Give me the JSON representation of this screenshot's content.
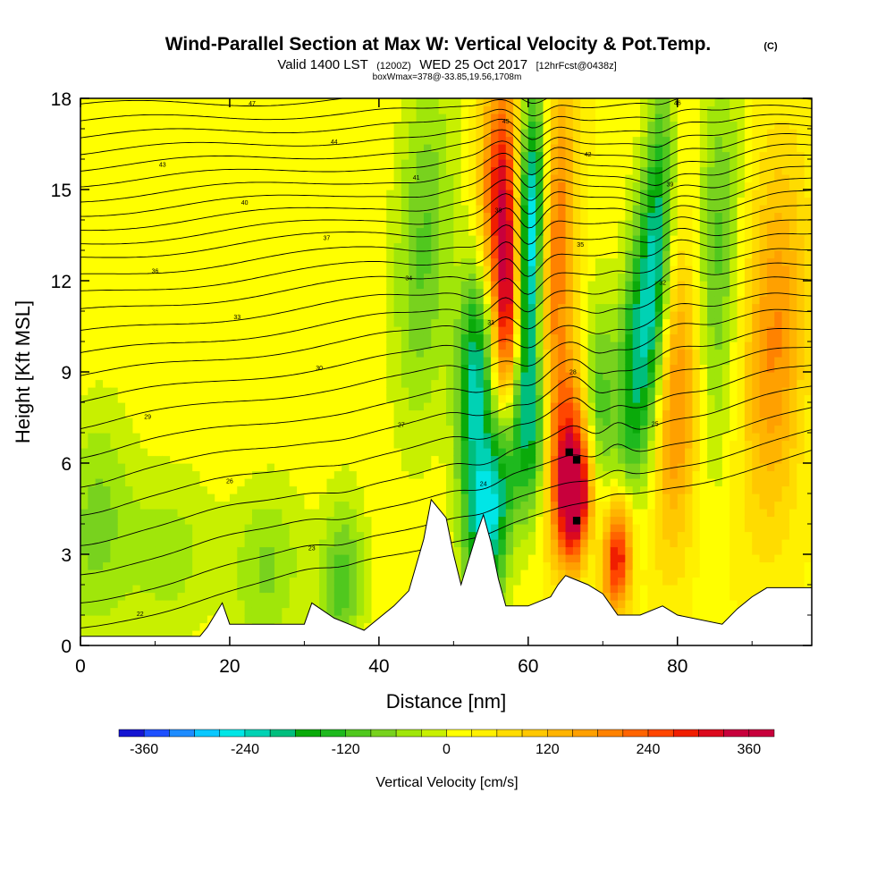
{
  "header": {
    "title": "Wind-Parallel Section at Max W: Vertical Velocity & Pot.Temp.",
    "copyright": "(C)",
    "valid_prefix": "Valid 1400 LST",
    "valid_z": "(1200Z)",
    "valid_date": "WED 25 Oct 2017",
    "valid_fcst": "[12hrFcst@0438z]",
    "boxline": "boxWmax=378@-33.85,19.56,1708m"
  },
  "chart_data": {
    "type": "contour",
    "xlabel": "Distance [nm]",
    "ylabel": "Height [Kft MSL]",
    "xlim": [
      0,
      98
    ],
    "ylim": [
      0,
      18
    ],
    "x_ticks": [
      "0",
      "20",
      "40",
      "60",
      "80"
    ],
    "y_ticks": [
      "0",
      "3",
      "6",
      "9",
      "12",
      "15",
      "18"
    ],
    "colorbar": {
      "label": "Vertical Velocity [cm/s]",
      "tick_labels": [
        "-360",
        "-240",
        "-120",
        "0",
        "120",
        "240",
        "360"
      ],
      "levels": [
        -390,
        -360,
        -330,
        -300,
        -270,
        -240,
        -210,
        -180,
        -150,
        -120,
        -90,
        -60,
        -30,
        0,
        30,
        60,
        90,
        120,
        150,
        180,
        210,
        240,
        270,
        300,
        330,
        360,
        390
      ],
      "colors": [
        "#1414d2",
        "#1e50ff",
        "#1e8cff",
        "#0ac8ff",
        "#00e6e6",
        "#00d2b4",
        "#00be7d",
        "#0aaa0a",
        "#1eb91e",
        "#50c81e",
        "#78d21e",
        "#a0e60a",
        "#c8f000",
        "#ffff00",
        "#fff000",
        "#ffdc00",
        "#ffc800",
        "#ffb400",
        "#ffa000",
        "#ff8200",
        "#ff6400",
        "#ff4600",
        "#f01e00",
        "#dc0a1e",
        "#c8003c"
      ]
    },
    "terrain_kft": [
      [
        0,
        0.3
      ],
      [
        16,
        0.3
      ],
      [
        17,
        0.6
      ],
      [
        18,
        1.0
      ],
      [
        19,
        1.4
      ],
      [
        20,
        0.7
      ],
      [
        30,
        0.7
      ],
      [
        31,
        1.4
      ],
      [
        34,
        0.9
      ],
      [
        36,
        0.7
      ],
      [
        38,
        0.5
      ],
      [
        40,
        0.9
      ],
      [
        42,
        1.3
      ],
      [
        44,
        1.8
      ],
      [
        46,
        3.5
      ],
      [
        47,
        4.8
      ],
      [
        49,
        4.2
      ],
      [
        50,
        3.0
      ],
      [
        51,
        2.0
      ],
      [
        53,
        3.6
      ],
      [
        54,
        4.3
      ],
      [
        55,
        3.4
      ],
      [
        56,
        2.2
      ],
      [
        57,
        1.3
      ],
      [
        60,
        1.3
      ],
      [
        63,
        1.6
      ],
      [
        64,
        2.0
      ],
      [
        65,
        2.3
      ],
      [
        68,
        2.0
      ],
      [
        70,
        1.7
      ],
      [
        72,
        1.0
      ],
      [
        75,
        1.0
      ],
      [
        78,
        1.3
      ],
      [
        80,
        1.0
      ],
      [
        86,
        0.7
      ],
      [
        88,
        1.2
      ],
      [
        90,
        1.6
      ],
      [
        92,
        1.9
      ],
      [
        98,
        1.9
      ]
    ],
    "vv_features": [
      {
        "x": 2,
        "z": 4,
        "a": -95,
        "w": 5,
        "h": 4
      },
      {
        "x": 12,
        "z": 3,
        "a": -70,
        "w": 6,
        "h": 3
      },
      {
        "x": 25,
        "z": 2.5,
        "a": -90,
        "w": 5,
        "h": 3
      },
      {
        "x": 35,
        "z": 2,
        "a": -130,
        "w": 3,
        "h": 3
      },
      {
        "x": 46,
        "z": 13,
        "a": -120,
        "w": 4,
        "h": 6
      },
      {
        "x": 53,
        "z": 9,
        "a": -250,
        "w": 2.5,
        "h": 4
      },
      {
        "x": 54,
        "z": 4,
        "a": -220,
        "w": 2.5,
        "h": 3
      },
      {
        "x": 56.5,
        "z": 6,
        "a": -160,
        "w": 2,
        "h": 4
      },
      {
        "x": 57.5,
        "z": 11,
        "a": 380,
        "w": 2,
        "h": 4
      },
      {
        "x": 56,
        "z": 15,
        "a": 270,
        "w": 2.5,
        "h": 4
      },
      {
        "x": 60,
        "z": 13,
        "a": -390,
        "w": 2.2,
        "h": 5
      },
      {
        "x": 61,
        "z": 7,
        "a": -260,
        "w": 2.5,
        "h": 3
      },
      {
        "x": 63.5,
        "z": 13,
        "a": 200,
        "w": 2.5,
        "h": 6
      },
      {
        "x": 66.5,
        "z": 4.8,
        "a": 390,
        "w": 2.5,
        "h": 2.2
      },
      {
        "x": 65,
        "z": 7,
        "a": 210,
        "w": 4,
        "h": 3
      },
      {
        "x": 69,
        "z": 7,
        "a": -210,
        "w": 2.5,
        "h": 4
      },
      {
        "x": 72,
        "z": 3,
        "a": 310,
        "w": 2,
        "h": 2
      },
      {
        "x": 74,
        "z": 9,
        "a": -190,
        "w": 2,
        "h": 5
      },
      {
        "x": 77,
        "z": 12,
        "a": -260,
        "w": 2,
        "h": 6
      },
      {
        "x": 80,
        "z": 8,
        "a": 170,
        "w": 4,
        "h": 5
      },
      {
        "x": 85,
        "z": 12,
        "a": -140,
        "w": 3,
        "h": 7
      },
      {
        "x": 93,
        "z": 10,
        "a": 160,
        "w": 4,
        "h": 6
      }
    ],
    "theta_contours": [
      {
        "base_kft": 0.6,
        "label": "22"
      },
      {
        "base_kft": 1.5,
        "label": "23"
      },
      {
        "base_kft": 2.5,
        "label": "24"
      },
      {
        "base_kft": 3.5,
        "label": "25"
      },
      {
        "base_kft": 4.5,
        "label": "26"
      },
      {
        "base_kft": 5.4,
        "label": "27"
      },
      {
        "base_kft": 6.3,
        "label": "28"
      },
      {
        "base_kft": 7.2,
        "label": "29"
      },
      {
        "base_kft": 8.0,
        "label": "30"
      },
      {
        "base_kft": 8.8,
        "label": "31"
      },
      {
        "base_kft": 9.5,
        "label": "32"
      },
      {
        "base_kft": 10.2,
        "label": "33"
      },
      {
        "base_kft": 10.9,
        "label": "34"
      },
      {
        "base_kft": 11.5,
        "label": "35"
      },
      {
        "base_kft": 12.1,
        "label": "36"
      },
      {
        "base_kft": 12.7,
        "label": "37"
      },
      {
        "base_kft": 13.2,
        "label": "38"
      },
      {
        "base_kft": 13.7,
        "label": "39"
      },
      {
        "base_kft": 14.2,
        "label": "40"
      },
      {
        "base_kft": 14.7,
        "label": "41"
      },
      {
        "base_kft": 15.2,
        "label": "42"
      },
      {
        "base_kft": 15.7,
        "label": "43"
      },
      {
        "base_kft": 16.2,
        "label": "44"
      },
      {
        "base_kft": 16.7,
        "label": "45"
      },
      {
        "base_kft": 17.2,
        "label": "46"
      },
      {
        "base_kft": 17.7,
        "label": "47"
      }
    ]
  }
}
